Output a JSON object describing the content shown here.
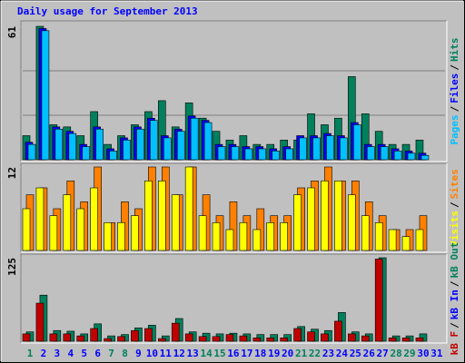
{
  "title": "Daily usage for September 2013",
  "separator": "/",
  "categories": [
    "1",
    "2",
    "3",
    "4",
    "5",
    "6",
    "7",
    "8",
    "9",
    "10",
    "11",
    "12",
    "13",
    "14",
    "15",
    "16",
    "17",
    "18",
    "19",
    "20",
    "21",
    "22",
    "23",
    "24",
    "25",
    "26",
    "27",
    "28",
    "29",
    "30",
    "31"
  ],
  "category_colors": [
    "#00805c",
    "#0000ff",
    "#0000ff",
    "#0000ff",
    "#0000ff",
    "#0000ff",
    "#00805c",
    "#00805c",
    "#0000ff",
    "#0000ff",
    "#0000ff",
    "#0000ff",
    "#0000ff",
    "#00805c",
    "#00805c",
    "#0000ff",
    "#0000ff",
    "#0000ff",
    "#0000ff",
    "#0000ff",
    "#00805c",
    "#00805c",
    "#0000ff",
    "#0000ff",
    "#0000ff",
    "#0000ff",
    "#0000ff",
    "#00805c",
    "#00805c",
    "#0000ff",
    "#0000ff"
  ],
  "chart_data": [
    {
      "type": "bar",
      "ylim": [
        0,
        61
      ],
      "yticks": [
        61
      ],
      "grid": true,
      "series": [
        {
          "name": "Hits",
          "color": "#00805c",
          "values": [
            11,
            61,
            16,
            15,
            11,
            22,
            7,
            11,
            16,
            22,
            27,
            15,
            26,
            19,
            13,
            9,
            11,
            7,
            7,
            9,
            9,
            21,
            16,
            19,
            38,
            21,
            13,
            7,
            7,
            9,
            null
          ]
        },
        {
          "name": "Files",
          "color": "#0000ff",
          "values": [
            8,
            60,
            15,
            13,
            7,
            15,
            5,
            10,
            15,
            19,
            11,
            14,
            20,
            18,
            7,
            7,
            6,
            6,
            5,
            6,
            11,
            11,
            12,
            11,
            17,
            7,
            7,
            5,
            4,
            3,
            null
          ]
        },
        {
          "name": "Pages",
          "color": "#00c0ff",
          "values": [
            7,
            59,
            14,
            12,
            6,
            14,
            4,
            9,
            14,
            18,
            10,
            13,
            19,
            17,
            6,
            6,
            5,
            5,
            4,
            5,
            10,
            10,
            11,
            10,
            16,
            6,
            6,
            4,
            3,
            2,
            null
          ]
        }
      ]
    },
    {
      "type": "bar",
      "ylim": [
        0,
        12
      ],
      "yticks": [
        12
      ],
      "series": [
        {
          "name": "Sites",
          "color": "#ff8000",
          "values": [
            8,
            9,
            6,
            10,
            7,
            12,
            4,
            7,
            6,
            12,
            12,
            8,
            12,
            8,
            5,
            7,
            5,
            6,
            5,
            5,
            9,
            10,
            12,
            10,
            10,
            7,
            5,
            3,
            3,
            5,
            null
          ]
        },
        {
          "name": "Visits",
          "color": "#ffff00",
          "values": [
            6,
            9,
            5,
            8,
            6,
            9,
            4,
            4,
            5,
            10,
            10,
            8,
            12,
            5,
            4,
            3,
            4,
            3,
            4,
            4,
            8,
            9,
            10,
            10,
            8,
            5,
            4,
            3,
            2,
            3,
            null
          ]
        }
      ]
    },
    {
      "type": "bar",
      "ylim": [
        0,
        125
      ],
      "yticks": [
        125
      ],
      "series": [
        {
          "name": "kB Out",
          "color": "#00805c",
          "values": [
            14,
            69,
            16,
            15,
            11,
            26,
            8,
            10,
            20,
            24,
            8,
            34,
            14,
            12,
            11,
            12,
            11,
            10,
            10,
            10,
            22,
            18,
            16,
            43,
            14,
            11,
            125,
            8,
            8,
            11,
            null
          ]
        },
        {
          "name": "kB In",
          "color": "#0000ff",
          "values": [
            0,
            0,
            0,
            0,
            0,
            0,
            0,
            0,
            0,
            0,
            0,
            0,
            0,
            0,
            0,
            0,
            0,
            0,
            0,
            0,
            0,
            0,
            0,
            0,
            0,
            0,
            0,
            0,
            0,
            0,
            null
          ]
        },
        {
          "name": "kB F",
          "color": "#c00000",
          "values": [
            11,
            57,
            11,
            11,
            8,
            19,
            4,
            7,
            16,
            19,
            4,
            27,
            11,
            7,
            7,
            10,
            8,
            5,
            5,
            5,
            19,
            14,
            11,
            30,
            11,
            8,
            123,
            5,
            5,
            5,
            null
          ]
        }
      ]
    }
  ]
}
